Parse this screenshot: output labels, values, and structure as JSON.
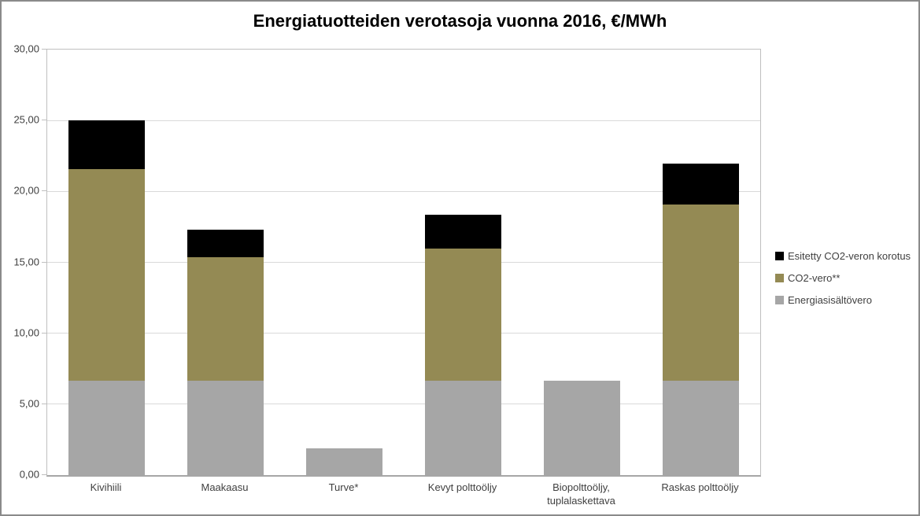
{
  "chart_data": {
    "type": "bar",
    "stacked": true,
    "title": "Energiatuotteiden verotasoja vuonna 2016, €/MWh",
    "categories": [
      "Kivihiili",
      "Maakaasu",
      "Turve*",
      "Kevyt polttoöljy",
      "Biopolttoöljy, tuplalaskettava",
      "Raskas polttoöljy"
    ],
    "series": [
      {
        "name": "Energiasisältövero",
        "color": "#a6a6a6",
        "values": [
          6.65,
          6.65,
          1.9,
          6.65,
          6.65,
          6.65
        ]
      },
      {
        "name": "CO2-vero**",
        "color": "#948a54",
        "values": [
          14.95,
          8.7,
          0,
          9.3,
          0,
          12.4
        ]
      },
      {
        "name": "Esitetty CO2-veron korotus",
        "color": "#000000",
        "values": [
          3.4,
          1.95,
          0,
          2.4,
          0,
          2.9
        ]
      }
    ],
    "stack_totals": [
      25.0,
      17.3,
      1.9,
      18.35,
      6.65,
      21.95
    ],
    "legend": [
      "Esitetty CO2-veron korotus",
      "CO2-vero**",
      "Energiasisältövero"
    ],
    "legend_position": "right",
    "ylim": [
      0,
      30
    ],
    "ytick_step": 5,
    "ytick_labels": [
      "0,00",
      "5,00",
      "10,00",
      "15,00",
      "20,00",
      "25,00",
      "30,00"
    ],
    "grid": true,
    "colors": {
      "gridline": "#d9d9d9",
      "axis_line": "#a6a6a6",
      "plot_border": "#bfbfbf",
      "axis_text": "#404040",
      "title_text": "#000000"
    }
  }
}
